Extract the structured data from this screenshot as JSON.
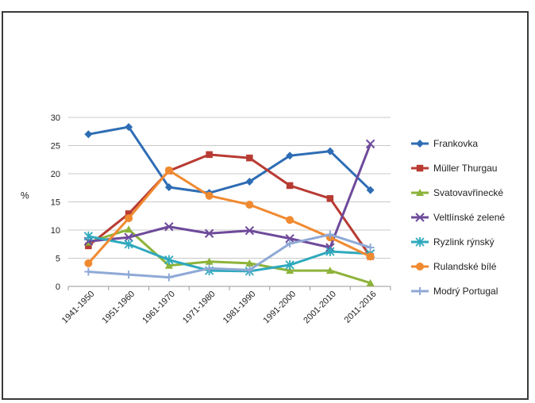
{
  "chart_data": {
    "type": "line",
    "ylabel": "%",
    "ylim": [
      0,
      30
    ],
    "yticks": [
      0,
      5,
      10,
      15,
      20,
      25,
      30
    ],
    "grid": "horizontal",
    "legend_position": "right",
    "categories": [
      "1941-1950",
      "1951-1960",
      "1961-1970",
      "1971-1980",
      "1981-1990",
      "1991-2000",
      "2001-2010",
      "2011-2016"
    ],
    "series": [
      {
        "name": "Frankovka",
        "color": "#2E6DB4",
        "marker": "diamond",
        "values": [
          27.0,
          28.3,
          17.6,
          16.6,
          18.6,
          23.2,
          24.0,
          17.1
        ]
      },
      {
        "name": "Müller Thurgau",
        "color": "#B83B33",
        "marker": "square",
        "values": [
          7.2,
          12.9,
          20.5,
          23.4,
          22.8,
          17.9,
          15.6,
          5.3
        ]
      },
      {
        "name": "Svatovavřinecké",
        "color": "#8DB33A",
        "marker": "triangle",
        "values": [
          7.8,
          10.1,
          3.7,
          4.4,
          4.1,
          2.8,
          2.8,
          0.6
        ]
      },
      {
        "name": "Veltlínské zelené",
        "color": "#6E4A9B",
        "marker": "x",
        "values": [
          8.0,
          8.7,
          10.6,
          9.4,
          9.9,
          8.5,
          6.9,
          25.3
        ]
      },
      {
        "name": "Ryzlink rýnský",
        "color": "#2FA9BD",
        "marker": "asterisk",
        "values": [
          8.9,
          7.5,
          4.7,
          2.8,
          2.7,
          3.8,
          6.2,
          5.8
        ]
      },
      {
        "name": "Rulandské bílé",
        "color": "#F08A30",
        "marker": "circle",
        "values": [
          4.1,
          12.1,
          20.6,
          16.1,
          14.5,
          11.8,
          8.7,
          5.3
        ]
      },
      {
        "name": "Modrý Portugal",
        "color": "#8FA9D6",
        "marker": "plus",
        "values": [
          2.6,
          2.1,
          1.6,
          3.2,
          2.9,
          7.6,
          9.2,
          6.9
        ]
      }
    ]
  }
}
